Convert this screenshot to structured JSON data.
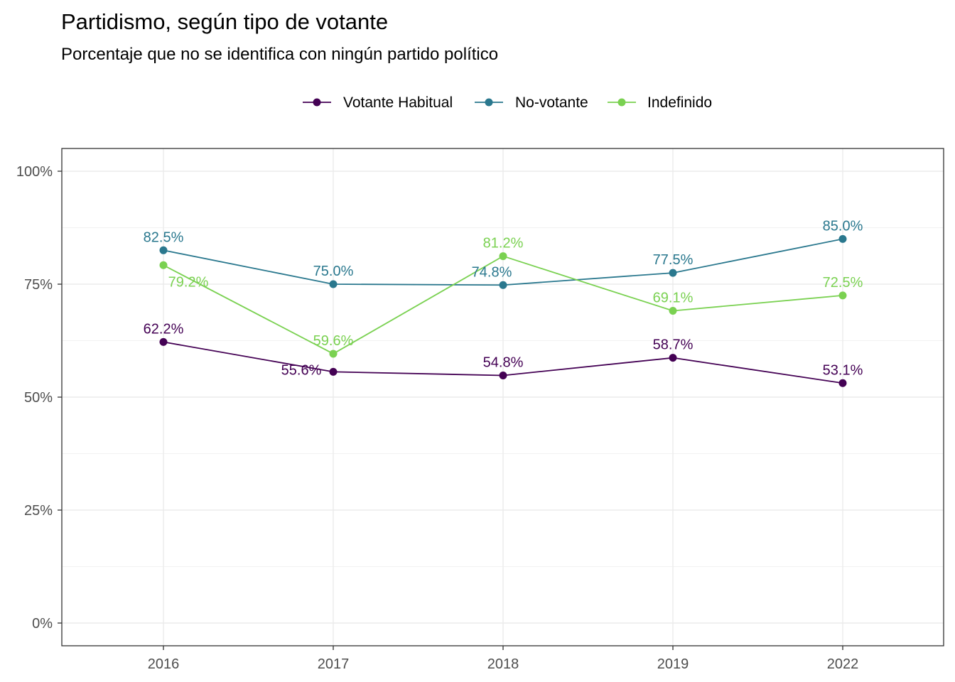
{
  "chart_data": {
    "type": "line",
    "title": "Partidismo, según tipo de votante",
    "subtitle": "Porcentaje que no se identifica con ningún partido político",
    "xlabel": "",
    "ylabel": "",
    "categories": [
      "2016",
      "2017",
      "2018",
      "2019",
      "2022"
    ],
    "ylim": [
      0,
      100
    ],
    "y_ticks": [
      0,
      25,
      50,
      75,
      100
    ],
    "y_tick_labels": [
      "0%",
      "25%",
      "50%",
      "75%",
      "100%"
    ],
    "grid": true,
    "legend_position": "top",
    "series": [
      {
        "name": "Votante Habitual",
        "color": "#440154",
        "values": [
          62.2,
          55.6,
          54.8,
          58.7,
          53.1
        ],
        "labels": [
          "62.2%",
          "55.6%",
          "54.8%",
          "58.7%",
          "53.1%"
        ]
      },
      {
        "name": "No-votante",
        "color": "#2A788E",
        "values": [
          82.5,
          75.0,
          74.8,
          77.5,
          85.0
        ],
        "labels": [
          "82.5%",
          "75.0%",
          "74.8%",
          "77.5%",
          "85.0%"
        ]
      },
      {
        "name": "Indefinido",
        "color": "#7AD151",
        "values": [
          79.2,
          59.6,
          81.2,
          69.1,
          72.5
        ],
        "labels": [
          "79.2%",
          "59.6%",
          "81.2%",
          "69.1%",
          "72.5%"
        ]
      }
    ]
  }
}
